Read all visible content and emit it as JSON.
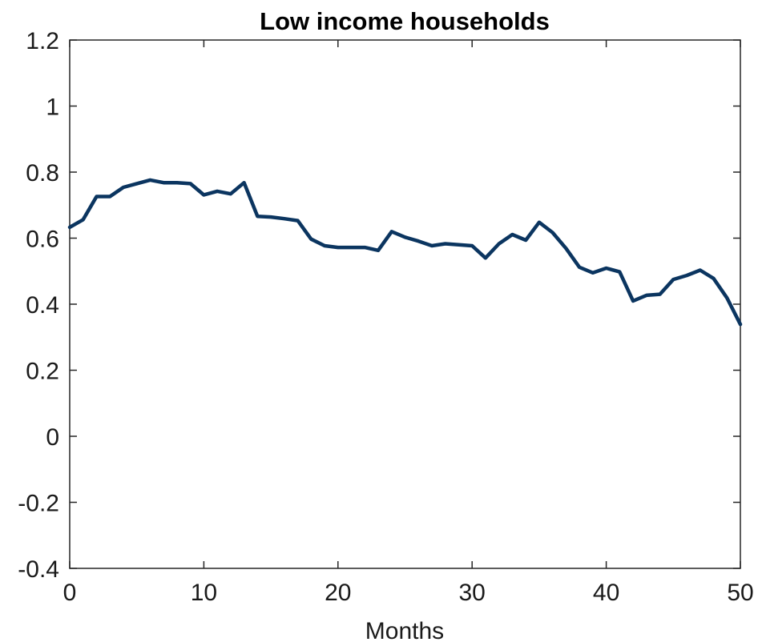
{
  "chart_data": {
    "type": "line",
    "title": "Low income households",
    "xlabel": "Months",
    "ylabel": "",
    "xlim": [
      0,
      50
    ],
    "ylim": [
      -0.4,
      1.2
    ],
    "xticks": [
      0,
      10,
      20,
      30,
      40,
      50
    ],
    "yticks": [
      -0.4,
      -0.2,
      0,
      0.2,
      0.4,
      0.6,
      0.8,
      1,
      1.2
    ],
    "xtick_labels": [
      "0",
      "10",
      "20",
      "30",
      "40",
      "50"
    ],
    "ytick_labels": [
      "-0.4",
      "-0.2",
      "0",
      "0.2",
      "0.4",
      "0.6",
      "0.8",
      "1",
      "1.2"
    ],
    "grid": false,
    "line_color": "#0b3560",
    "series": [
      {
        "x": [
          0,
          1,
          2,
          3,
          4,
          5,
          6,
          7,
          8,
          9,
          10,
          11,
          12,
          13,
          14,
          15,
          16,
          17,
          18,
          19,
          20,
          21,
          22,
          23,
          24,
          25,
          26,
          27,
          28,
          29,
          30,
          31,
          32,
          33,
          34,
          35,
          36,
          37,
          38,
          39,
          40,
          41,
          42,
          43,
          44,
          45,
          46,
          47,
          48,
          49,
          50
        ],
        "values": [
          0.633,
          0.656,
          0.726,
          0.726,
          0.754,
          0.765,
          0.776,
          0.768,
          0.768,
          0.765,
          0.731,
          0.742,
          0.734,
          0.768,
          0.666,
          0.664,
          0.659,
          0.653,
          0.597,
          0.577,
          0.572,
          0.572,
          0.572,
          0.563,
          0.62,
          0.603,
          0.591,
          0.577,
          0.583,
          0.58,
          0.577,
          0.54,
          0.583,
          0.611,
          0.594,
          0.648,
          0.617,
          0.569,
          0.512,
          0.495,
          0.509,
          0.498,
          0.41,
          0.427,
          0.43,
          0.475,
          0.487,
          0.503,
          0.478,
          0.419,
          0.339
        ]
      }
    ]
  }
}
